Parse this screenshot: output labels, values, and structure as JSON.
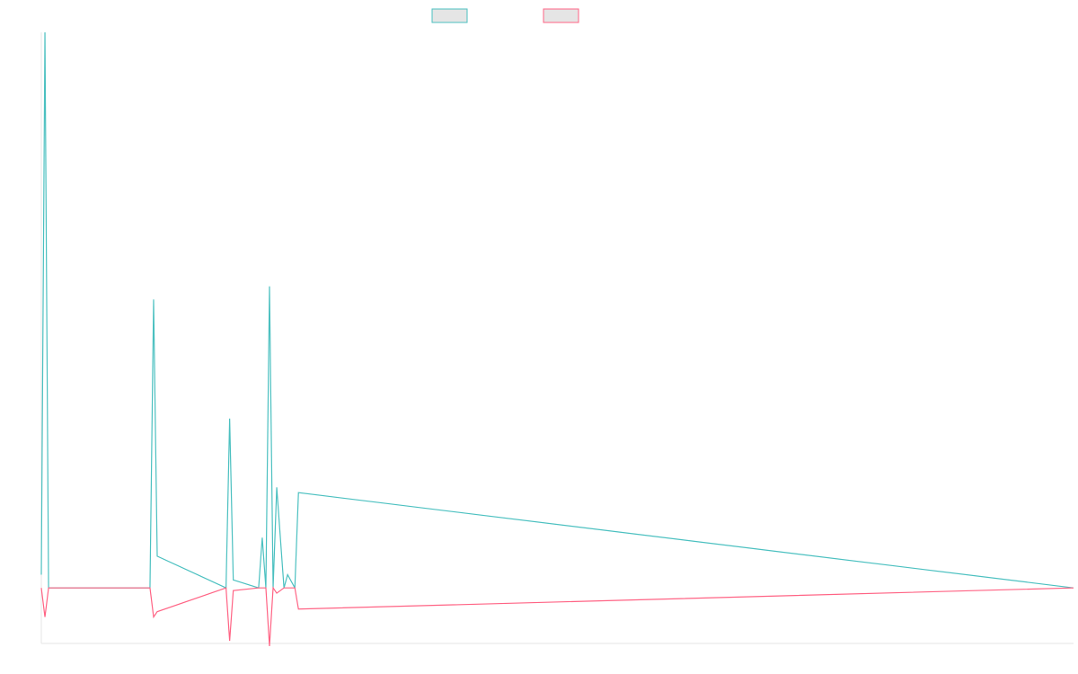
{
  "chart_data": {
    "type": "line",
    "title": "",
    "xlabel": "",
    "ylabel": "",
    "grid": false,
    "legend": {
      "position": "top-center",
      "shows_labels": false
    },
    "ylim": [
      -1.05,
      10.5
    ],
    "xlim": [
      0,
      285
    ],
    "x": [
      0,
      1,
      2,
      30,
      31,
      32,
      51,
      52,
      53,
      60,
      61,
      62,
      63,
      64,
      65,
      67,
      68,
      70,
      71,
      285
    ],
    "series": [
      {
        "color": "#4bc0c0",
        "values": [
          0.25,
          10.5,
          0,
          0,
          5.45,
          0.6,
          0,
          3.2,
          0.15,
          0,
          0.95,
          0,
          5.7,
          0,
          1.9,
          0,
          0.25,
          0,
          1.8,
          0
        ]
      },
      {
        "color": "#ff6384",
        "values": [
          0,
          -0.55,
          0,
          0,
          -0.55,
          -0.45,
          0,
          -1.0,
          -0.05,
          0,
          0,
          0,
          -1.1,
          0,
          -0.1,
          0,
          0,
          0,
          -0.4,
          0
        ]
      }
    ]
  }
}
